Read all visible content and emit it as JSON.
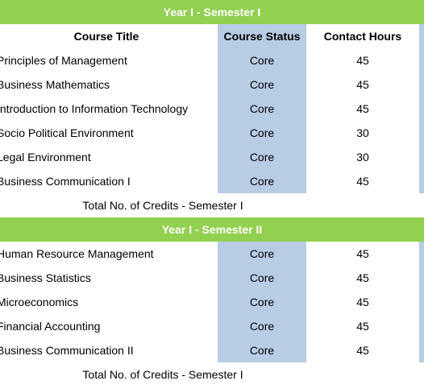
{
  "sections": [
    {
      "title": "Year I - Semester I",
      "header": [
        "Course Title",
        "Course Status",
        "Contact Hours"
      ],
      "rows": [
        [
          "Principles of Management",
          "Core",
          45
        ],
        [
          "Business Mathematics",
          "Core",
          45
        ],
        [
          "Introduction to Information Technology",
          "Core",
          45
        ],
        [
          "Socio Political Environment",
          "Core",
          30
        ],
        [
          "Legal Environment",
          "Core",
          30
        ],
        [
          "Business Communication I",
          "Core",
          45
        ]
      ],
      "total": "Total No. of Credits - Semester I"
    },
    {
      "title": "Year I - Semester II",
      "rows": [
        [
          "Human Resource Management",
          "Core",
          45
        ],
        [
          "Business Statistics",
          "Core",
          45
        ],
        [
          "Microeconomics",
          "Core",
          45
        ],
        [
          "Financial Accounting",
          "Core",
          45
        ],
        [
          "Business Communication II",
          "Core",
          45
        ]
      ],
      "total": "Total No. of Credits - Semester I"
    }
  ]
}
